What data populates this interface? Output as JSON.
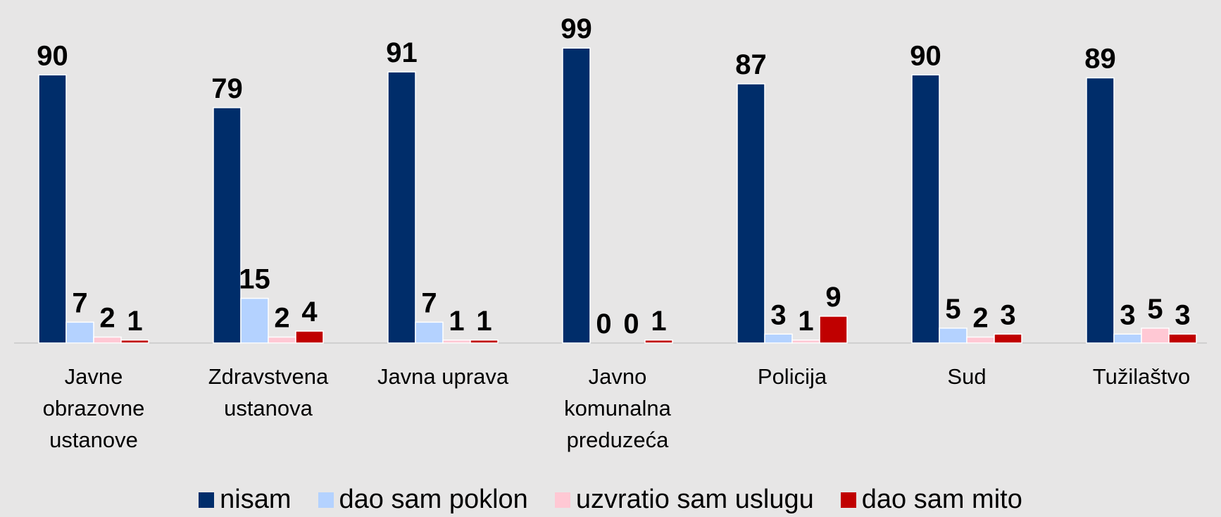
{
  "chart_data": {
    "type": "bar",
    "categories": [
      "Javne obrazovne ustanove",
      "Zdravstvena ustanova",
      "Javna uprava",
      "Javno komunalna preduzeća",
      "Policija",
      "Sud",
      "Tužilaštvo"
    ],
    "series": [
      {
        "name": "nisam",
        "color": "#002d6a",
        "values": [
          90,
          79,
          91,
          99,
          87,
          90,
          89
        ]
      },
      {
        "name": "dao sam poklon",
        "color": "#b4d2ff",
        "values": [
          7,
          15,
          7,
          0,
          3,
          5,
          3
        ]
      },
      {
        "name": "uzvratio sam uslugu",
        "color": "#ffc8d4",
        "values": [
          2,
          2,
          1,
          0,
          1,
          2,
          5
        ]
      },
      {
        "name": "dao sam mito",
        "color": "#c00000",
        "values": [
          1,
          4,
          1,
          1,
          9,
          3,
          3
        ]
      }
    ],
    "ylim": [
      0,
      100
    ],
    "legend": "bottom"
  }
}
